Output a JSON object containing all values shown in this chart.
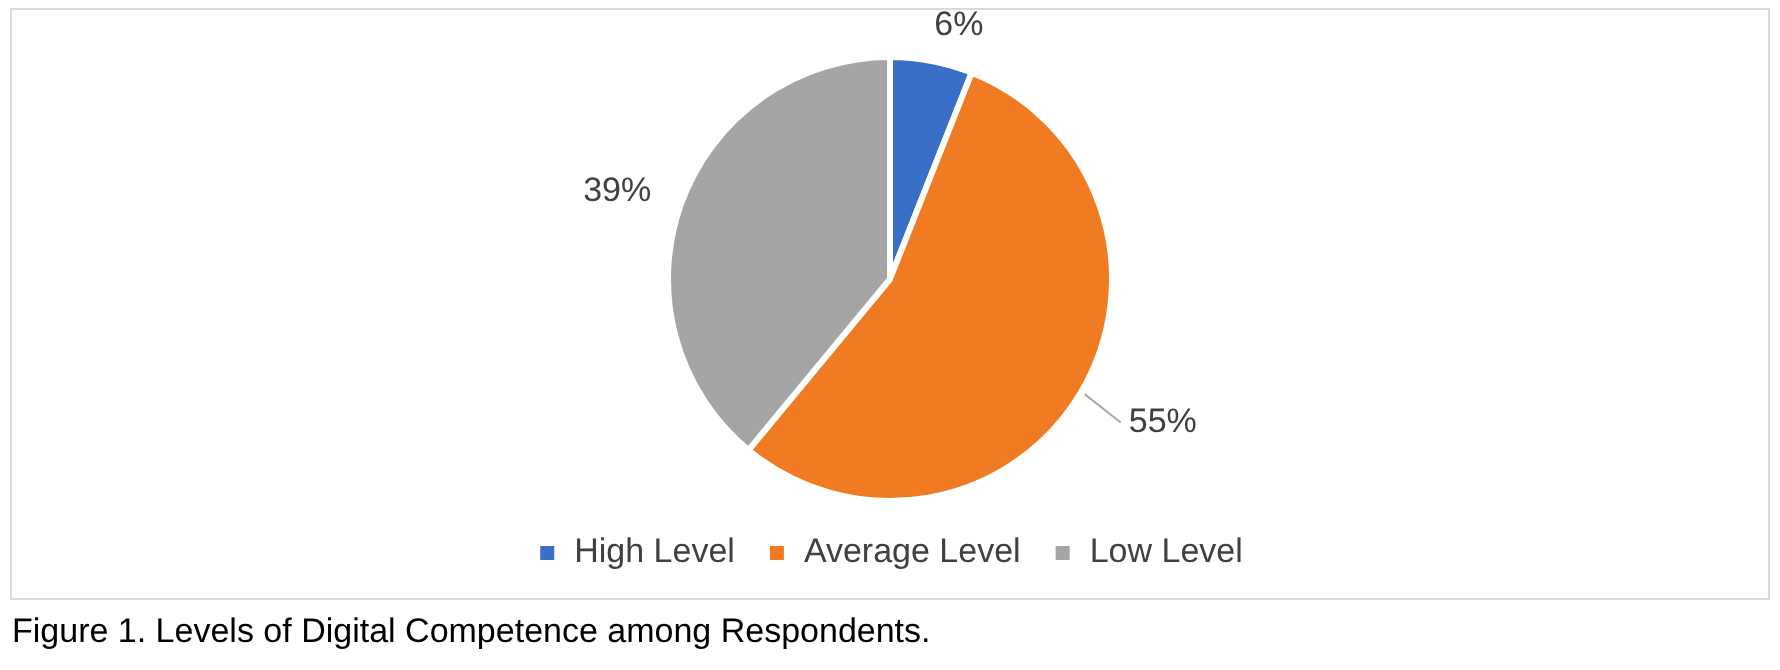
{
  "chart_data": {
    "type": "pie",
    "categories": [
      "High Level",
      "Average Level",
      "Low Level"
    ],
    "values": [
      6,
      55,
      39
    ],
    "colors": [
      "#3a6fc8",
      "#f07b22",
      "#a5a5a5"
    ],
    "value_labels": [
      "6%",
      "55%",
      "39%"
    ],
    "legend": "bottom",
    "annotations": [
      "Figure 1. Levels of Digital Competence among Respondents."
    ]
  }
}
